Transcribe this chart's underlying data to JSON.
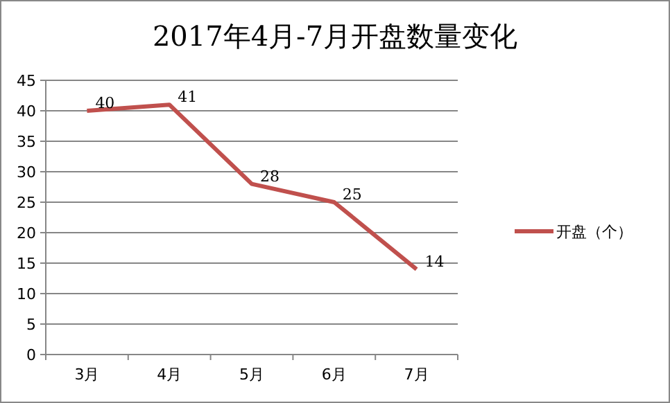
{
  "chart_data": {
    "type": "line",
    "title": "2017年4月-7月开盘数量变化",
    "categories": [
      "3月",
      "4月",
      "5月",
      "6月",
      "7月"
    ],
    "series": [
      {
        "name": "开盘（个）",
        "color": "#c0504d",
        "values": [
          40,
          41,
          28,
          25,
          14
        ]
      }
    ],
    "ylim": [
      0,
      45
    ],
    "yticks": [
      0,
      5,
      10,
      15,
      20,
      25,
      30,
      35,
      40,
      45
    ],
    "grid": "y",
    "legend": "right",
    "data_labels": true,
    "marker": "none",
    "line_style": "solid"
  }
}
